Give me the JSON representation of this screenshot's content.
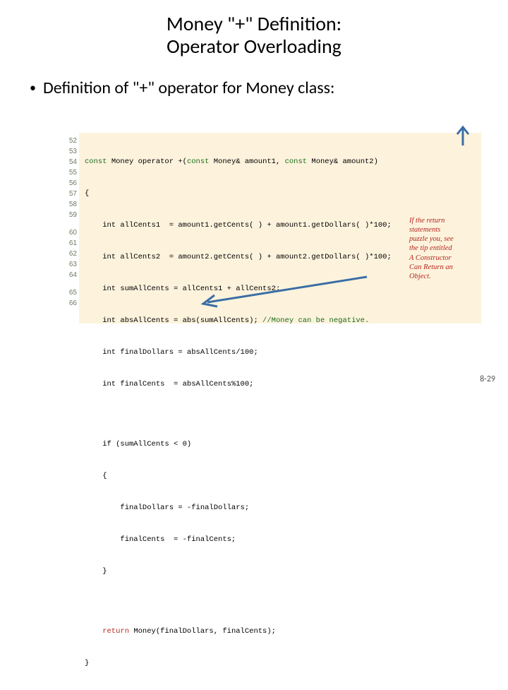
{
  "title_line1": "Money \"+\" Definition:",
  "title_line2": "Operator Overloading",
  "bullet_text": "Definition of \"+\" operator for Money class:",
  "page_number": "8-29",
  "colors": {
    "code_bg": "#fdf3dd",
    "keyword": "#1a6b1a",
    "comment": "#1a6b1a",
    "return_kw": "#b3261e",
    "gutter_text": "#6b7a61",
    "annotation": "#b3261e",
    "arrow": "#3b6ea5"
  },
  "fonts": {
    "title_size": 28,
    "bullet_size": 24,
    "code_size": 10.5,
    "gutter_size": 10,
    "annotation_size": 10.5
  },
  "gutter_groups": [
    [
      "52",
      "53",
      "54",
      "55",
      "56",
      "57",
      "58",
      "59"
    ],
    [
      "60",
      "61",
      "62",
      "63",
      "64"
    ],
    [
      "65",
      "66"
    ]
  ],
  "code": {
    "l52_kw": "const",
    "l52_rest": " Money operator +(",
    "l52_kw2": "const",
    "l52_rest2": " Money& amount1, ",
    "l52_kw3": "const",
    "l52_rest3": " Money& amount2)",
    "l53": "{",
    "l54": "    int allCents1  = amount1.getCents( ) + amount1.getDollars( )*100;",
    "l55": "    int allCents2  = amount2.getCents( ) + amount2.getDollars( )*100;",
    "l56": "    int sumAllCents = allCents1 + allCents2;",
    "l57a": "    int absAllCents = abs(sumAllCents); ",
    "l57b": "//Money can be negative.",
    "l58": "    int finalDollars = absAllCents/100;",
    "l59": "    int finalCents  = absAllCents%100;",
    "l60": "    if (sumAllCents < 0)",
    "l61": "    {",
    "l62": "        finalDollars = -finalDollars;",
    "l63": "        finalCents  = -finalCents;",
    "l64": "    }",
    "l65_kw": "    return",
    "l65_rest": " Money(finalDollars, finalCents);",
    "l66": "}"
  },
  "annotation_lines": [
    "If the return",
    "statements",
    "puzzle you, see",
    "the tip entitled",
    "A Constructor",
    "Can Return an",
    "Object."
  ]
}
